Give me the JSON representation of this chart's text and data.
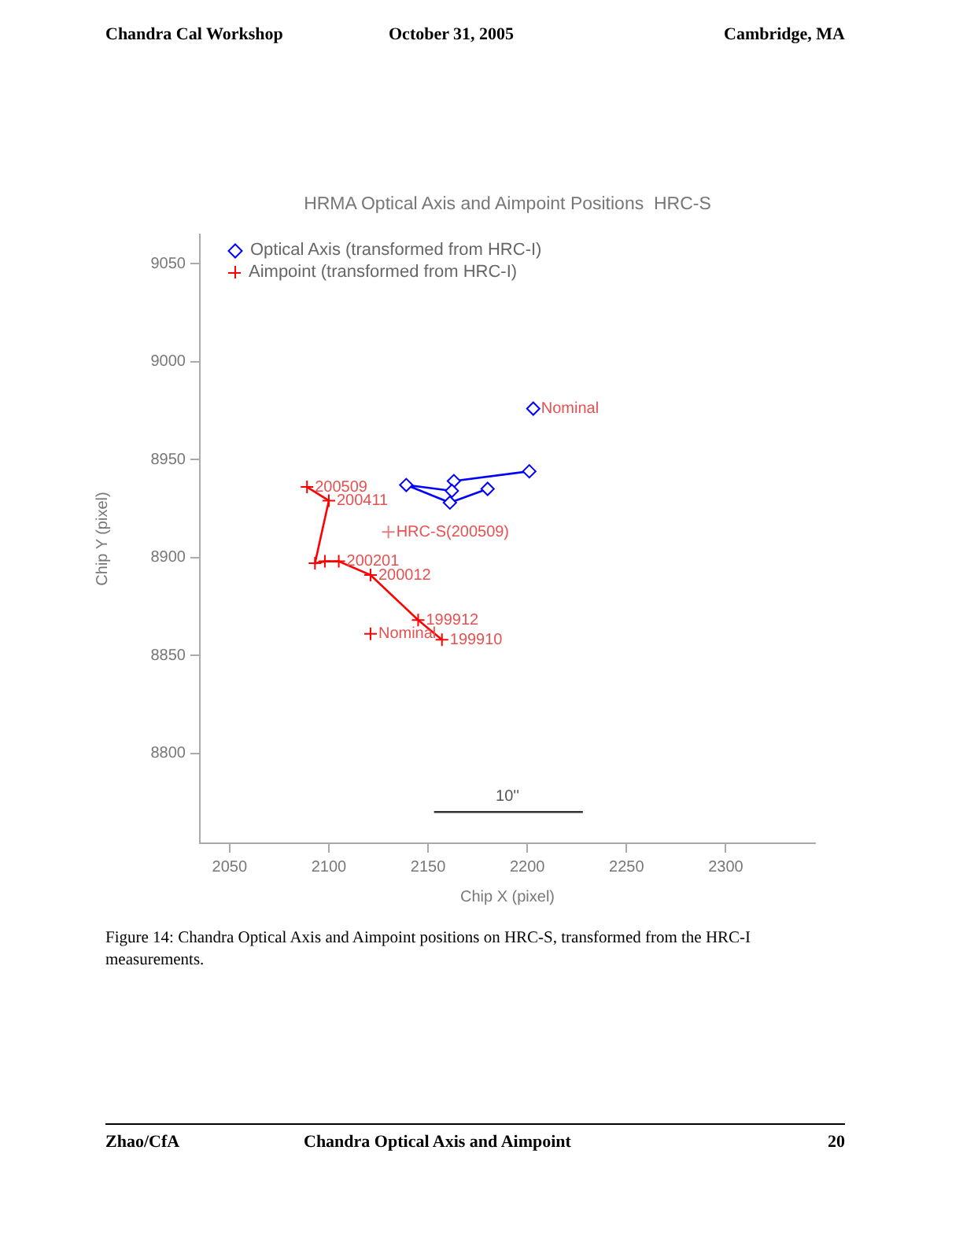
{
  "chart_data": {
    "type": "line",
    "title": "HRMA Optical Axis and Aimpoint Positions  HRC-S",
    "xlabel": "Chip X (pixel)",
    "ylabel": "Chip Y (pixel)",
    "xlim": [
      2035,
      2345
    ],
    "xticks": [
      2050,
      2100,
      2150,
      2200,
      2250,
      2300
    ],
    "ylim": [
      8754,
      9065
    ],
    "yticks": [
      8800,
      8850,
      8900,
      8950,
      9000,
      9050
    ],
    "grid": false,
    "legend": "top left",
    "series": [
      {
        "name": "Optical Axis (transformed from HRC-I)",
        "color": "#0000ff",
        "marker": "diamond",
        "x": [
          2201,
          2163,
          2162,
          2139,
          2161,
          2180
        ],
        "values": [
          8944,
          8939,
          8934,
          8937,
          8928,
          8935
        ]
      },
      {
        "name": "Aimpoint (transformed from HRC-I)",
        "color": "#ff0000",
        "marker": "cross",
        "x": [
          2157,
          2145,
          2121,
          2105,
          2098,
          2093,
          2100,
          2089
        ],
        "values": [
          8858,
          8868,
          8891,
          8898,
          8898,
          8897,
          8929,
          8936
        ]
      },
      {
        "type": "scatter",
        "color": "#0000ff",
        "marker": "diamond",
        "x": [
          2203
        ],
        "values": [
          8976
        ]
      },
      {
        "type": "scatter",
        "color": "#ff0000",
        "marker": "cross",
        "x": [
          2121
        ],
        "values": [
          8861
        ]
      },
      {
        "type": "scatter",
        "color": "#e08080",
        "marker": "cross",
        "x": [
          2130
        ],
        "values": [
          8913
        ]
      },
      {
        "color": "#333333",
        "marker": "none",
        "x": [
          2153,
          2228
        ],
        "values": [
          8770,
          8770
        ]
      }
    ],
    "annotations": [
      "Chandra Cal Workshop",
      "October 31, 2005",
      "Cambridge, MA",
      "Figure 14: Chandra Optical Axis and Aimpoint positions on HRC-S, transformed from the HRC-I measurements.",
      "Zhao/CfA",
      "Chandra Optical Axis and Aimpoint",
      "20",
      {
        "text": "Nominal",
        "x": 2203,
        "y": 8976
      },
      {
        "text": "Nominal",
        "x": 2121,
        "y": 8861
      },
      {
        "text": "HRC-S(200509)",
        "x": 2130,
        "y": 8913
      },
      {
        "text": "199910",
        "x": 2157,
        "y": 8858
      },
      {
        "text": "199912",
        "x": 2145,
        "y": 8868
      },
      {
        "text": "200012",
        "x": 2121,
        "y": 8891
      },
      {
        "text": "200201",
        "x": 2105,
        "y": 8898
      },
      {
        "text": "200411",
        "x": 2100,
        "y": 8929
      },
      {
        "text": "200509",
        "x": 2089,
        "y": 8936
      },
      {
        "text": "10''",
        "x": 2190,
        "y": 8770
      }
    ]
  }
}
